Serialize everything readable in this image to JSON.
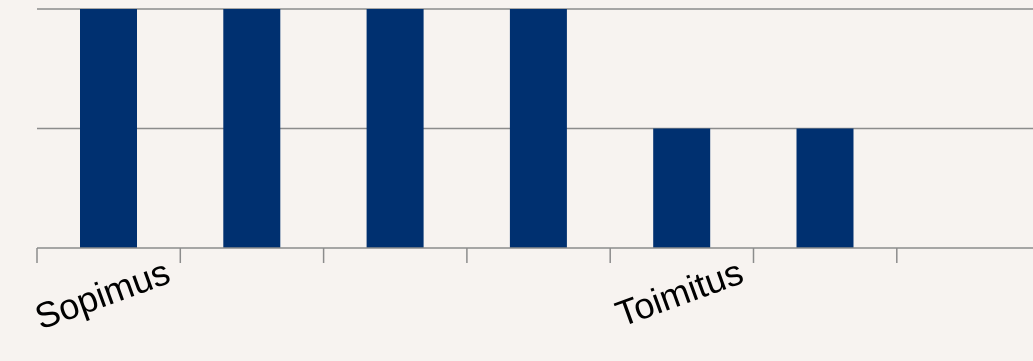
{
  "chart_data": {
    "type": "bar",
    "categories": [
      "Sopimus",
      "",
      "",
      "",
      "Toimitus",
      "",
      ""
    ],
    "values": [
      2,
      2,
      2,
      2,
      1,
      1,
      0
    ],
    "title": "",
    "xlabel": "",
    "ylabel": "",
    "ylim": [
      0,
      2
    ],
    "grid": true,
    "legend": "none",
    "colors": {
      "bar": "#003070",
      "grid": "#8c8c8c",
      "axis": "#8c8c8c",
      "background": "#f7f3f0",
      "text": "#000000"
    }
  }
}
